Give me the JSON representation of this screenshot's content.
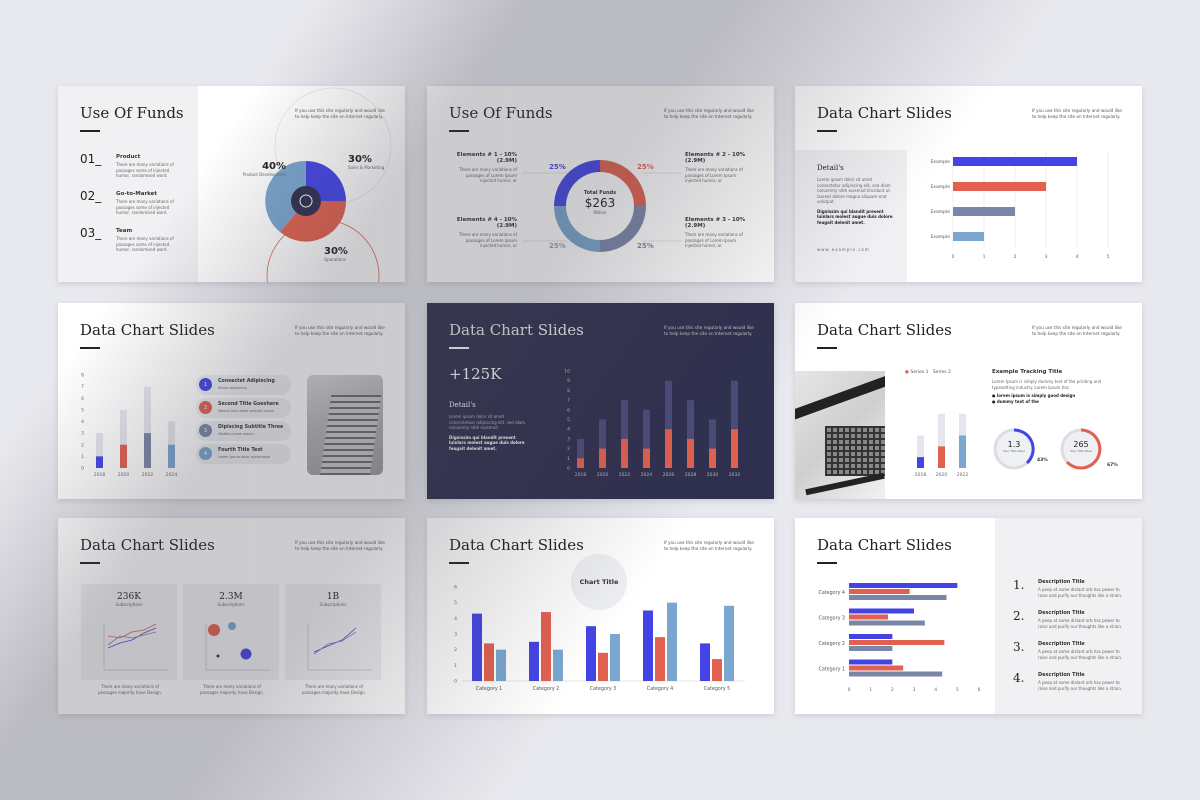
{
  "colors": {
    "blue": "#4444e6",
    "red": "#e2604f",
    "slate": "#7a86a8",
    "sky": "#7aa6cf",
    "light": "#e4e6ee",
    "dark": "#2f2f4f"
  },
  "note": "If you use this site regularly and would like to help keep the site on Internet regularly.",
  "lorem": "There are many variations of passages some of injected humor, randomised word.",
  "s1": {
    "title": "Use Of Funds",
    "items": [
      {
        "num": "01_",
        "label": "Product"
      },
      {
        "num": "02_",
        "label": "Go-to-Market"
      },
      {
        "num": "03_",
        "label": "Team"
      }
    ],
    "pct": [
      {
        "v": "40%",
        "l": "Product Development"
      },
      {
        "v": "30%",
        "l": "Sales & Marketing"
      },
      {
        "v": "30%",
        "l": "Operations"
      }
    ]
  },
  "s2": {
    "title": "Use Of Funds",
    "total_label": "Total Funds",
    "total_value": "$263",
    "total_unit": "Million",
    "elements": [
      "Elements # 1 - 10% (2.9M)",
      "Elements # 2 - 10% (2.9M)",
      "Elements # 4 - 10% (2.9M)",
      "Elements # 3 - 10% (2.9M)"
    ],
    "pct": [
      "25%",
      "25%",
      "25%",
      "25%"
    ],
    "desc": "There are many variations of passages of Lorem Ipsum injected humor, or"
  },
  "s3": {
    "title": "Data Chart Slides",
    "detail": "Detail's",
    "detail_text": "Lorem ipsum dolor sit amet consectetur adipiscing elit, sed diam nonummy nibh euismod tincidunt ut laoreet dolore magna aliquam erat volutpat.",
    "detail_bold": "Dignissim qui blandit present luinlars molest augue duis dolore feugait delenit amet.",
    "url": "www.example.com",
    "bars": [
      {
        "label": "Example",
        "v": 4
      },
      {
        "label": "Example",
        "v": 3
      },
      {
        "label": "Example",
        "v": 2
      },
      {
        "label": "Example",
        "v": 1
      }
    ],
    "ticks": [
      "0",
      "1",
      "2",
      "3",
      "4",
      "5"
    ]
  },
  "s4": {
    "title": "Data Chart Slides",
    "years": [
      "2018",
      "2020",
      "2022",
      "2024"
    ],
    "yticks": [
      "0",
      "1",
      "2",
      "3",
      "4",
      "5",
      "6",
      "7",
      "8"
    ],
    "items": [
      {
        "n": "1",
        "t": "Consectet Adipiscing",
        "s": "Minim adipiscing"
      },
      {
        "n": "2",
        "t": "Second Title Goeshere",
        "s": "Mauris lectu dolor suscipit luctus"
      },
      {
        "n": "3",
        "t": "Dipiscing Subtitle Three",
        "s": "Vestibul lorem ipsum"
      },
      {
        "n": "4",
        "t": "Fourth Title Text",
        "s": "Lorem ipsum dolor scelerisque"
      }
    ]
  },
  "s5": {
    "title": "Data Chart Slides",
    "big": "+125K",
    "detail": "Detail's",
    "detail_text": "Lorem ipsum dolor sit amet consectetuer adipiscing elit, sed diam nonummy nibh euismod.",
    "detail_bold": "Dignissim qui blandit present luinlars molest augue duis dolore feugait delenit amet.",
    "years": [
      "2018",
      "2020",
      "2022",
      "2024",
      "2026",
      "2028",
      "2030",
      "2032"
    ],
    "yticks": [
      "0",
      "1",
      "2",
      "3",
      "4",
      "5",
      "6",
      "7",
      "8",
      "9",
      "10"
    ]
  },
  "s6": {
    "title": "Data Chart Slides",
    "legend": [
      "Series 1",
      "Series 2"
    ],
    "years": [
      "2018",
      "2020",
      "2022"
    ],
    "track_title": "Example Tracking Title",
    "track_text": "Lorem Ipsum is simply dummy text of the printing and typesetting industry. Lorem Ipsum has",
    "bullets": [
      "lorem ipsum is simply good design",
      "dummy text of the"
    ],
    "g1": {
      "v": "1.3",
      "l": "Your Title Here",
      "p": "43%"
    },
    "g2": {
      "v": "265",
      "l": "Your Title Here",
      "p": "67%"
    }
  },
  "s7": {
    "title": "Data Chart Slides",
    "panels": [
      {
        "v": "236K",
        "l": "Subscriptions"
      },
      {
        "v": "2.3M",
        "l": "Subscriptions"
      },
      {
        "v": "1B",
        "l": "Subscriptions"
      }
    ],
    "caption": "There are many variations of passages majority have Design."
  },
  "s8": {
    "title": "Data Chart Slides",
    "chart_title": "Chart Title",
    "categories": [
      "Category 1",
      "Category 2",
      "Category 3",
      "Category 4",
      "Category 5"
    ],
    "yticks": [
      "0",
      "1",
      "2",
      "3",
      "4",
      "5",
      "6"
    ]
  },
  "s9": {
    "title": "Data Chart Slides",
    "categories": [
      "Category 4",
      "Category 3",
      "Category 2",
      "Category 1"
    ],
    "xticks": [
      "0",
      "1",
      "2",
      "3",
      "4",
      "5",
      "6"
    ],
    "items": [
      {
        "n": "1.",
        "t": "Description Title"
      },
      {
        "n": "2.",
        "t": "Description Title"
      },
      {
        "n": "3.",
        "t": "Description Title"
      },
      {
        "n": "4.",
        "t": "Description Title"
      }
    ],
    "desc": "A peep at some distant orb has power to raise and purify our thoughts like a strain."
  },
  "chart_data": [
    {
      "type": "bar",
      "slide": "s3",
      "orientation": "horizontal",
      "categories": [
        "Example",
        "Example",
        "Example",
        "Example"
      ],
      "values": [
        4,
        3,
        2,
        1
      ],
      "xlim": [
        0,
        5
      ]
    },
    {
      "type": "bar",
      "slide": "s4",
      "categories": [
        "2018",
        "2020",
        "2022",
        "2024"
      ],
      "series": [
        {
          "values": [
            1,
            2,
            3,
            2
          ]
        },
        {
          "values": [
            3,
            5,
            7,
            4
          ]
        }
      ],
      "ylim": [
        0,
        8
      ]
    },
    {
      "type": "bar",
      "slide": "s5",
      "categories": [
        "2018",
        "2020",
        "2022",
        "2024",
        "2026",
        "2028",
        "2030",
        "2032"
      ],
      "series": [
        {
          "values": [
            1,
            2,
            3,
            2,
            4,
            3,
            2,
            4
          ]
        },
        {
          "values": [
            3,
            5,
            7,
            6,
            9,
            7,
            5,
            9
          ]
        }
      ],
      "ylim": [
        0,
        10
      ]
    },
    {
      "type": "bar",
      "slide": "s6",
      "categories": [
        "2018",
        "2020",
        "2022"
      ],
      "series": [
        {
          "name": "Series 1",
          "values": [
            1,
            2,
            3
          ]
        },
        {
          "name": "Series 2",
          "values": [
            3,
            5,
            5
          ]
        }
      ]
    },
    {
      "type": "bar",
      "slide": "s8",
      "categories": [
        "Category 1",
        "Category 2",
        "Category 3",
        "Category 4",
        "Category 5"
      ],
      "series": [
        {
          "values": [
            4.3,
            2.5,
            3.5,
            4.5,
            2.4
          ]
        },
        {
          "values": [
            2.4,
            4.4,
            1.8,
            2.8,
            1.4
          ]
        },
        {
          "values": [
            2,
            2,
            3,
            5,
            4.8
          ]
        }
      ],
      "ylim": [
        0,
        6
      ]
    },
    {
      "type": "bar",
      "slide": "s9",
      "orientation": "horizontal",
      "categories": [
        "Category 4",
        "Category 3",
        "Category 2",
        "Category 1"
      ],
      "series": [
        {
          "values": [
            5,
            3,
            2,
            2
          ]
        },
        {
          "values": [
            2.8,
            1.8,
            4.4,
            2.5
          ]
        },
        {
          "values": [
            4.5,
            3.5,
            2,
            4.3
          ]
        }
      ],
      "xlim": [
        0,
        6
      ]
    }
  ]
}
